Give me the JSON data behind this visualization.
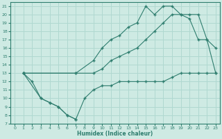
{
  "xlabel": "Humidex (Indice chaleur)",
  "ylabel": "",
  "bg_color": "#ceeae3",
  "line_color": "#2e7d6e",
  "grid_color": "#b0d8d0",
  "xlim": [
    -0.5,
    23.5
  ],
  "ylim": [
    7,
    21.5
  ],
  "yticks": [
    7,
    8,
    9,
    10,
    11,
    12,
    13,
    14,
    15,
    16,
    17,
    18,
    19,
    20,
    21
  ],
  "xticks": [
    0,
    1,
    2,
    3,
    4,
    5,
    6,
    7,
    8,
    9,
    10,
    11,
    12,
    13,
    14,
    15,
    16,
    17,
    18,
    19,
    20,
    21,
    22,
    23
  ],
  "line1_x": [
    1,
    3,
    4,
    5,
    6,
    7
  ],
  "line1_y": [
    13,
    10,
    9.5,
    9,
    8,
    7.5
  ],
  "line2_x": [
    1,
    7,
    9,
    10,
    11,
    12,
    13,
    14,
    15,
    16,
    17,
    18,
    19,
    20,
    21,
    22,
    23
  ],
  "line2_y": [
    13,
    13,
    14.5,
    16,
    17,
    17.5,
    18.5,
    19,
    21,
    20,
    21,
    21,
    20,
    19.5,
    17,
    17,
    13
  ],
  "line3_x": [
    1,
    7,
    9,
    10,
    11,
    12,
    13,
    14,
    15,
    16,
    17,
    18,
    19,
    20,
    21,
    22,
    23
  ],
  "line3_y": [
    13,
    13,
    13,
    13.5,
    14.5,
    15,
    15.5,
    16,
    17,
    18,
    19,
    20,
    20,
    20,
    20,
    17,
    16
  ],
  "line4_x": [
    1,
    2,
    3,
    4,
    5,
    6,
    7,
    8,
    9,
    10,
    11,
    12,
    13,
    14,
    15,
    16,
    17,
    18,
    19,
    20,
    21,
    22,
    23
  ],
  "line4_y": [
    13,
    12,
    10,
    9.5,
    9,
    8,
    7.5,
    10,
    11,
    11.5,
    11.5,
    12,
    12,
    12,
    12,
    12,
    12,
    12.5,
    13,
    13,
    13,
    13,
    13
  ]
}
